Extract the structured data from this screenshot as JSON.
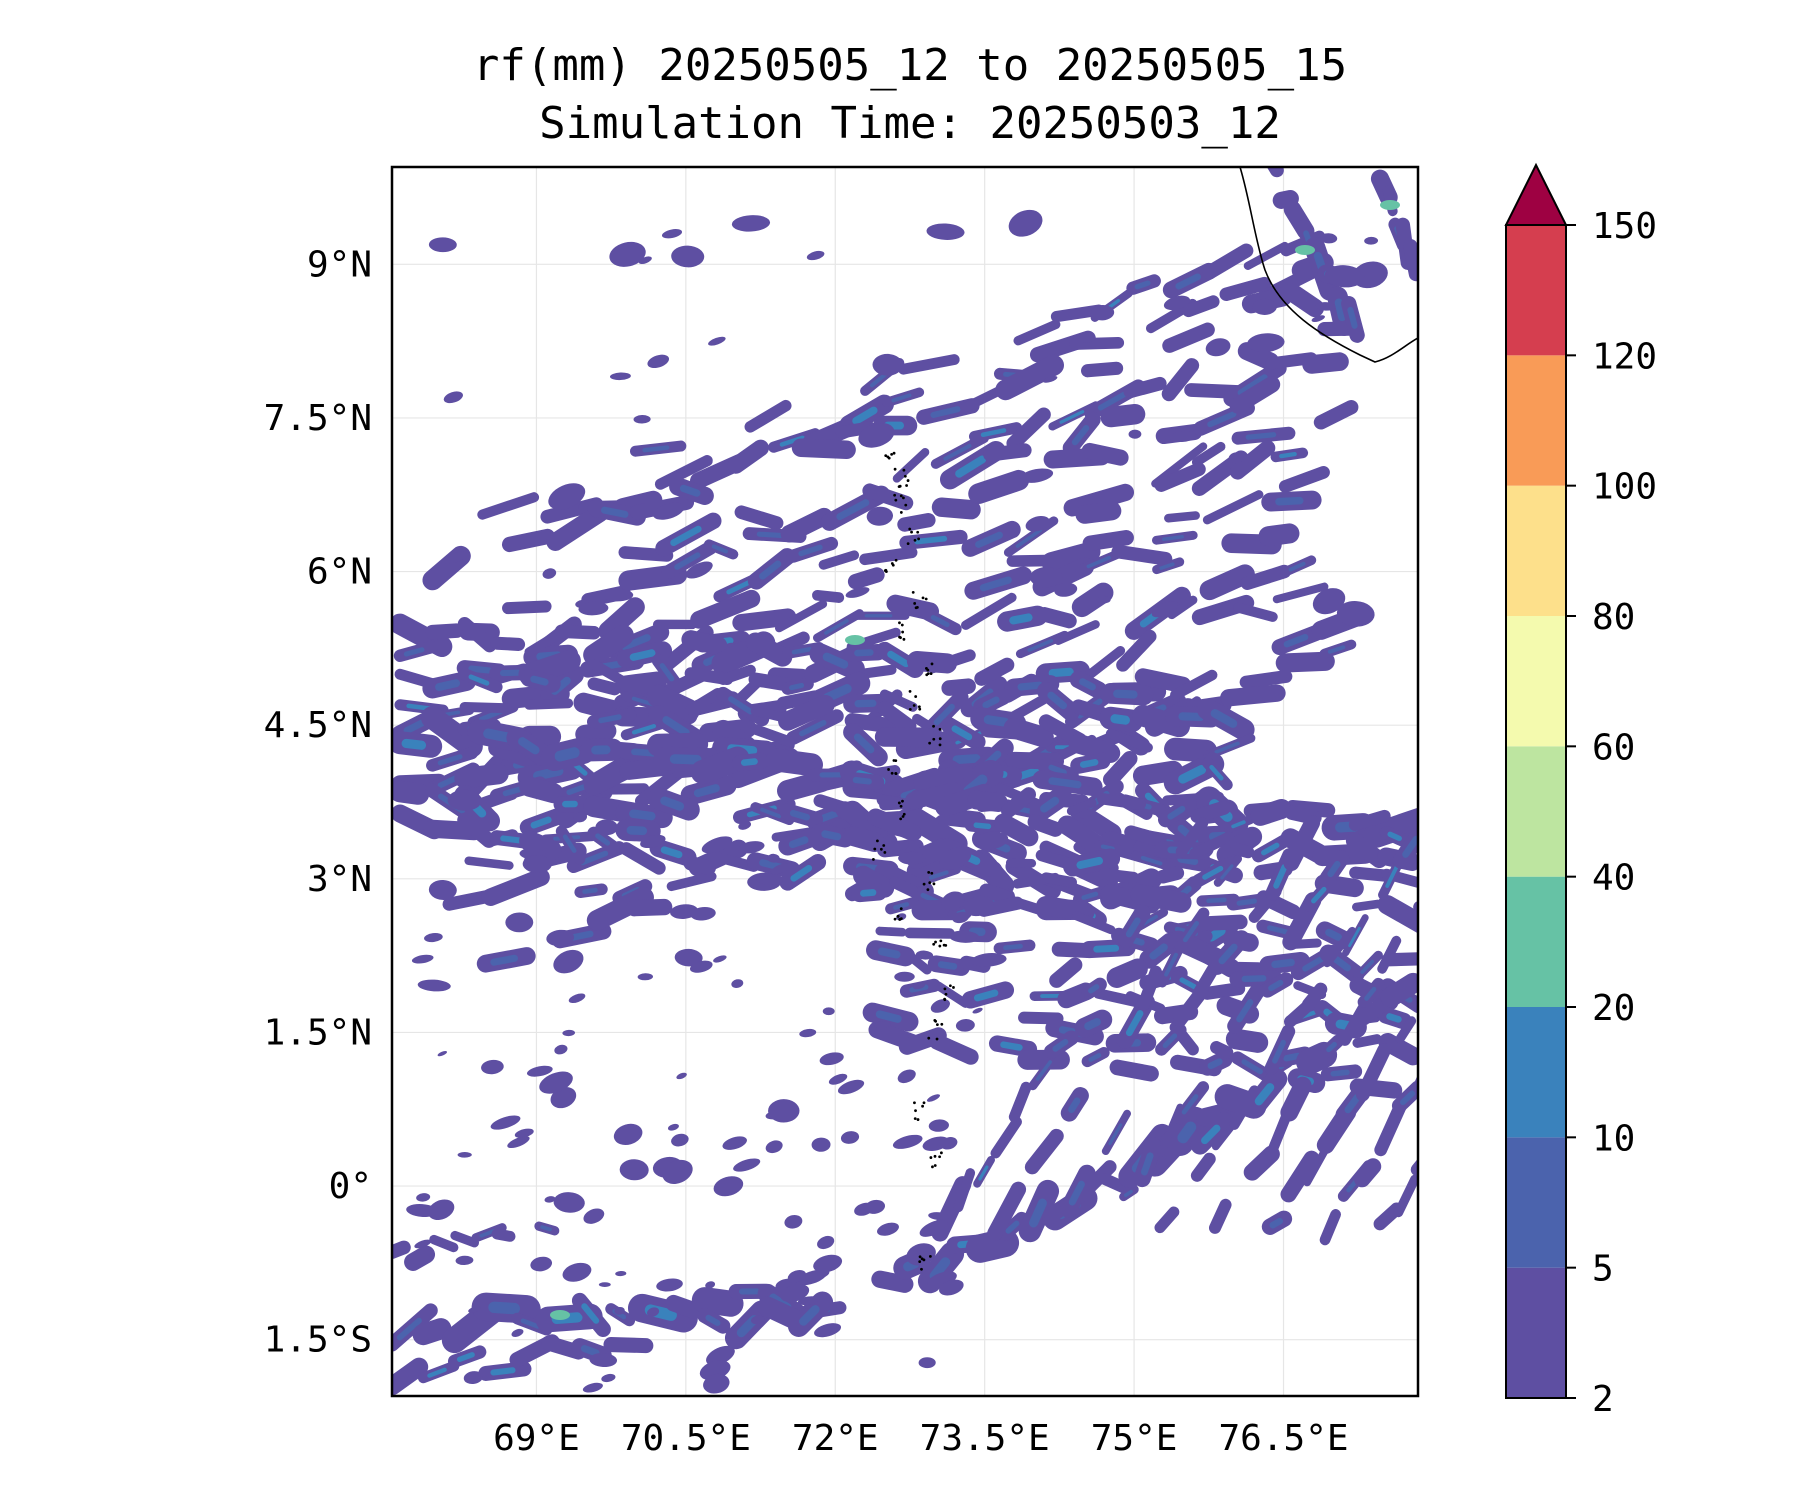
{
  "title": {
    "line1": "rf(mm) 20250505_12 to 20250505_15",
    "line2": "Simulation Time: 20250503_12"
  },
  "map": {
    "lon_range": [
      67.55,
      77.85
    ],
    "lat_range": [
      -2.05,
      9.95
    ],
    "lon_ticks": [
      {
        "value": 69.0,
        "label": "69°E"
      },
      {
        "value": 70.5,
        "label": "70.5°E"
      },
      {
        "value": 72.0,
        "label": "72°E"
      },
      {
        "value": 73.5,
        "label": "73.5°E"
      },
      {
        "value": 75.0,
        "label": "75°E"
      },
      {
        "value": 76.5,
        "label": "76.5°E"
      }
    ],
    "lat_ticks": [
      {
        "value": 9.0,
        "label": "9°N"
      },
      {
        "value": 7.5,
        "label": "7.5°N"
      },
      {
        "value": 6.0,
        "label": "6°N"
      },
      {
        "value": 4.5,
        "label": "4.5°N"
      },
      {
        "value": 3.0,
        "label": "3°N"
      },
      {
        "value": 1.5,
        "label": "1.5°N"
      },
      {
        "value": 0.0,
        "label": "0°"
      },
      {
        "value": -1.5,
        "label": "1.5°S"
      }
    ],
    "grid": true,
    "coastline": "India southwest coast (top-right), Maldives atolls dotted"
  },
  "colorbar": {
    "extend": "max",
    "levels": [
      {
        "label": "2",
        "color": "#5e4fa2"
      },
      {
        "label": "5",
        "color": "#4b63ad"
      },
      {
        "label": "10",
        "color": "#3a82bc"
      },
      {
        "label": "20",
        "color": "#66c2a5"
      },
      {
        "label": "40",
        "color": "#bde5a0"
      },
      {
        "label": "60",
        "color": "#f4faae"
      },
      {
        "label": "80",
        "color": "#fde08b"
      },
      {
        "label": "100",
        "color": "#f99b57"
      },
      {
        "label": "120",
        "color": "#d53e4f"
      },
      {
        "label": "150",
        "color": "#9e0142"
      }
    ]
  }
}
